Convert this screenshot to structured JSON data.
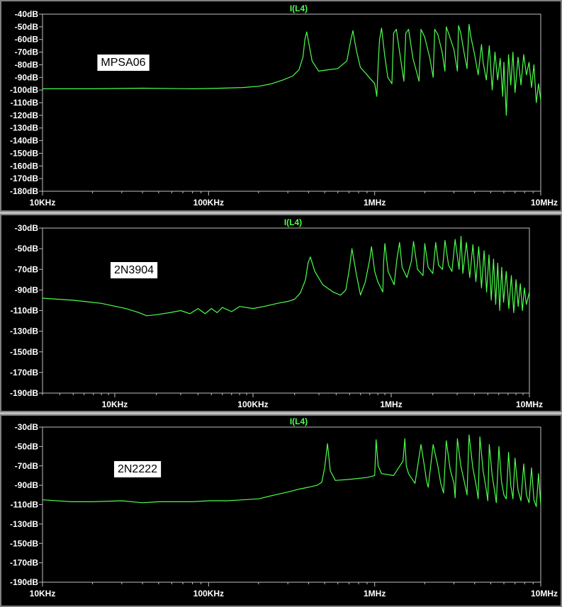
{
  "colors": {
    "background": "#000000",
    "trace": "#4dff4d",
    "axis_text": "#ffffff",
    "title_text": "#4dff4d",
    "frame": "#c0c0c0",
    "label_box": "#ffffff",
    "label_text": "#000000"
  },
  "chart_data": [
    {
      "type": "line",
      "title": "I(L4)",
      "annotation": "MPSA06",
      "xscale": "log",
      "xlim": [
        10000,
        10000000
      ],
      "ylim": [
        -180,
        -40
      ],
      "yticks": [
        -40,
        -50,
        -60,
        -70,
        -80,
        -90,
        -100,
        -110,
        -120,
        -130,
        -140,
        -150,
        -160,
        -170,
        -180
      ],
      "ytick_labels": [
        "-40dB",
        "-50dB",
        "-60dB",
        "-70dB",
        "-80dB",
        "-90dB",
        "-100dB",
        "-110dB",
        "-120dB",
        "-130dB",
        "-140dB",
        "-150dB",
        "-160dB",
        "-170dB",
        "-180dB"
      ],
      "xticks": [
        10000,
        100000,
        1000000,
        10000000
      ],
      "xtick_labels": [
        "10KHz",
        "100KHz",
        "1MHz",
        "10MHz"
      ],
      "series": [
        {
          "x": [
            10000,
            20000,
            40000,
            80000,
            120000,
            160000,
            200000,
            240000,
            280000,
            320000,
            350000,
            370000,
            380000,
            390000,
            400000,
            420000,
            460000,
            520000,
            600000,
            680000,
            720000,
            740000,
            760000,
            780000,
            820000,
            900000,
            1000000,
            1030000,
            1050000,
            1070000,
            1100000,
            1150000,
            1200000,
            1270000,
            1300000,
            1350000,
            1420000,
            1500000,
            1540000,
            1600000,
            1700000,
            1850000,
            1900000,
            2000000,
            2150000,
            2250000,
            2300000,
            2400000,
            2550000,
            2650000,
            2700000,
            2800000,
            3000000,
            3150000,
            3200000,
            3300000,
            3450000,
            3600000,
            3700000,
            3800000,
            4000000,
            4200000,
            4400000,
            4500000,
            4700000,
            4900000,
            5100000,
            5300000,
            5500000,
            5700000,
            5900000,
            6000000,
            6200000,
            6400000,
            6600000,
            6800000,
            7000000,
            7300000,
            7600000,
            7900000,
            8200000,
            8500000,
            8800000,
            9100000,
            9400000,
            9700000,
            10000000
          ],
          "y": [
            -99,
            -99,
            -98.5,
            -99,
            -98.5,
            -98,
            -97,
            -95,
            -92,
            -89,
            -84,
            -74,
            -60,
            -54,
            -62,
            -77,
            -85,
            -84,
            -83,
            -77,
            -60,
            -53,
            -62,
            -70,
            -82,
            -88,
            -95,
            -105,
            -80,
            -60,
            -51,
            -73,
            -90,
            -95,
            -55,
            -52,
            -72,
            -93,
            -55,
            -52,
            -75,
            -93,
            -52,
            -58,
            -75,
            -90,
            -52,
            -56,
            -70,
            -85,
            -50,
            -56,
            -68,
            -85,
            -49,
            -55,
            -70,
            -83,
            -48,
            -58,
            -72,
            -88,
            -64,
            -78,
            -92,
            -65,
            -100,
            -70,
            -92,
            -75,
            -105,
            -78,
            -120,
            -72,
            -96,
            -70,
            -102,
            -74,
            -96,
            -72,
            -88,
            -78,
            -98,
            -80,
            -110,
            -95,
            -108
          ]
        }
      ]
    },
    {
      "type": "line",
      "title": "I(L4)",
      "annotation": "2N3904",
      "xscale": "log",
      "xlim": [
        3000,
        10000000
      ],
      "ylim": [
        -190,
        -30
      ],
      "yticks": [
        -30,
        -50,
        -70,
        -90,
        -110,
        -130,
        -150,
        -170,
        -190
      ],
      "ytick_labels": [
        "-30dB",
        "-50dB",
        "-70dB",
        "-90dB",
        "-110dB",
        "-130dB",
        "-150dB",
        "-170dB",
        "-190dB"
      ],
      "xticks": [
        10000,
        100000,
        1000000,
        10000000
      ],
      "xtick_labels": [
        "10KHz",
        "100KHz",
        "1MHz",
        "10MHz"
      ],
      "series": [
        {
          "x": [
            3000,
            5000,
            8000,
            12000,
            15000,
            17000,
            20000,
            25000,
            30000,
            35000,
            40000,
            45000,
            50000,
            55000,
            60000,
            70000,
            80000,
            100000,
            120000,
            150000,
            180000,
            200000,
            220000,
            240000,
            250000,
            260000,
            280000,
            320000,
            380000,
            430000,
            470000,
            500000,
            520000,
            560000,
            600000,
            650000,
            700000,
            720000,
            760000,
            800000,
            870000,
            880000,
            900000,
            950000,
            1050000,
            1100000,
            1150000,
            1200000,
            1300000,
            1400000,
            1450000,
            1550000,
            1700000,
            1750000,
            1850000,
            2000000,
            2100000,
            2200000,
            2350000,
            2450000,
            2600000,
            2750000,
            2900000,
            3100000,
            3200000,
            3300000,
            3500000,
            3700000,
            3900000,
            4100000,
            4300000,
            4500000,
            4700000,
            4900000,
            5100000,
            5300000,
            5500000,
            5700000,
            5900000,
            6100000,
            6300000,
            6500000,
            6800000,
            7100000,
            7400000,
            7700000,
            8000000,
            8300000,
            8600000,
            8900000,
            9200000,
            9500000,
            10000000
          ],
          "y": [
            -98,
            -100,
            -103,
            -108,
            -112,
            -115,
            -114,
            -112,
            -110,
            -113,
            -108,
            -113,
            -108,
            -112,
            -107,
            -111,
            -106,
            -108,
            -106,
            -103,
            -101,
            -99,
            -93,
            -80,
            -64,
            -58,
            -72,
            -85,
            -92,
            -95,
            -90,
            -68,
            -50,
            -75,
            -95,
            -82,
            -60,
            -48,
            -72,
            -82,
            -92,
            -64,
            -45,
            -72,
            -85,
            -60,
            -44,
            -68,
            -78,
            -62,
            -43,
            -70,
            -76,
            -45,
            -68,
            -74,
            -44,
            -66,
            -70,
            -42,
            -66,
            -72,
            -41,
            -70,
            -38,
            -74,
            -44,
            -78,
            -46,
            -82,
            -48,
            -88,
            -52,
            -92,
            -56,
            -100,
            -60,
            -104,
            -64,
            -110,
            -68,
            -102,
            -72,
            -108,
            -76,
            -112,
            -80,
            -106,
            -84,
            -110,
            -88,
            -104,
            -92
          ]
        }
      ]
    },
    {
      "type": "line",
      "title": "I(L4)",
      "annotation": "2N2222",
      "xscale": "log",
      "xlim": [
        10000,
        10000000
      ],
      "ylim": [
        -190,
        -30
      ],
      "yticks": [
        -30,
        -50,
        -70,
        -90,
        -110,
        -130,
        -150,
        -170,
        -190
      ],
      "ytick_labels": [
        "-30dB",
        "-50dB",
        "-70dB",
        "-90dB",
        "-110dB",
        "-130dB",
        "-150dB",
        "-170dB",
        "-190dB"
      ],
      "xticks": [
        10000,
        100000,
        1000000,
        10000000
      ],
      "xtick_labels": [
        "10KHz",
        "100KHz",
        "1MHz",
        "10MHz"
      ],
      "series": [
        {
          "x": [
            10000,
            15000,
            20000,
            30000,
            40000,
            50000,
            60000,
            80000,
            100000,
            130000,
            160000,
            200000,
            250000,
            300000,
            350000,
            400000,
            450000,
            480000,
            500000,
            520000,
            540000,
            580000,
            700000,
            900000,
            1000000,
            1020000,
            1050000,
            1100000,
            1300000,
            1480000,
            1520000,
            1550000,
            1600000,
            1750000,
            1900000,
            2000000,
            2050000,
            2100000,
            2250000,
            2400000,
            2500000,
            2600000,
            2700000,
            2850000,
            3000000,
            3050000,
            3150000,
            3300000,
            3500000,
            3600000,
            3700000,
            3900000,
            4100000,
            4200000,
            4300000,
            4500000,
            4700000,
            4800000,
            4900000,
            5100000,
            5300000,
            5400000,
            5600000,
            5800000,
            6000000,
            6200000,
            6400000,
            6600000,
            6800000,
            7000000,
            7300000,
            7600000,
            7900000,
            8200000,
            8500000,
            8800000,
            9100000,
            9400000,
            9700000,
            10000000
          ],
          "y": [
            -105,
            -107,
            -107,
            -106,
            -108,
            -107,
            -107,
            -107,
            -106,
            -106,
            -105,
            -104,
            -100,
            -97,
            -94,
            -92,
            -90,
            -87,
            -72,
            -47,
            -75,
            -85,
            -84,
            -82,
            -80,
            -43,
            -70,
            -78,
            -80,
            -65,
            -42,
            -70,
            -78,
            -88,
            -48,
            -72,
            -85,
            -92,
            -48,
            -70,
            -88,
            -98,
            -44,
            -74,
            -88,
            -103,
            -42,
            -70,
            -90,
            -100,
            -38,
            -72,
            -92,
            -104,
            -40,
            -75,
            -95,
            -106,
            -48,
            -80,
            -98,
            -108,
            -50,
            -86,
            -100,
            -104,
            -56,
            -90,
            -104,
            -62,
            -95,
            -106,
            -68,
            -100,
            -108,
            -72,
            -105,
            -112,
            -78,
            -110
          ]
        }
      ]
    }
  ]
}
